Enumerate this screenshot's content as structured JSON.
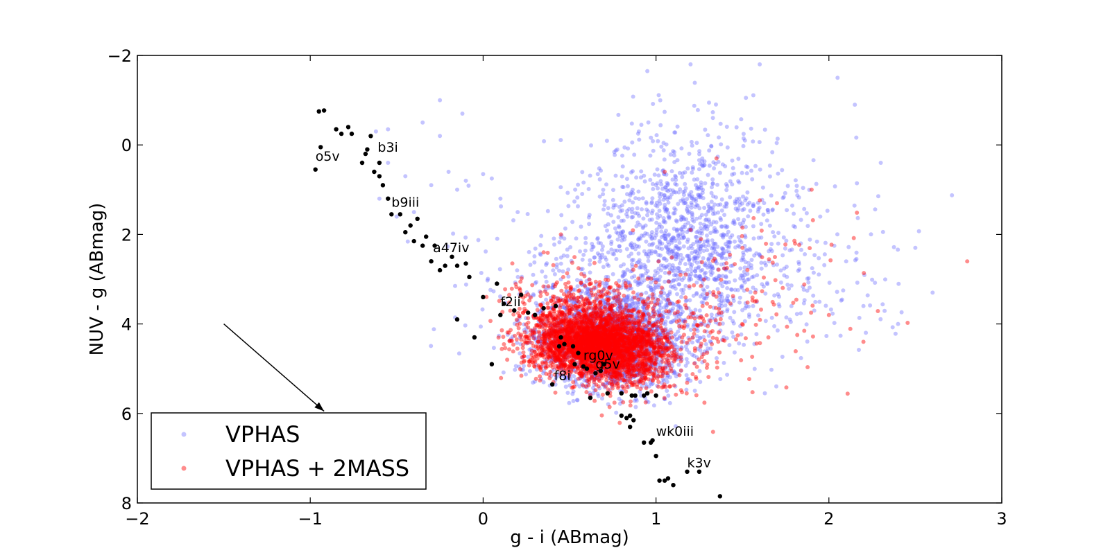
{
  "chart_data": {
    "type": "scatter",
    "xlabel": "g - i (ABmag)",
    "ylabel": "NUV - g (ABmag)",
    "xlim": [
      -2,
      3
    ],
    "ylim": [
      8,
      -2
    ],
    "y_inverted": true,
    "grid": false,
    "legend": {
      "placement": "bottom-left"
    },
    "x_ticks": [
      -2,
      -1,
      0,
      1,
      2,
      3
    ],
    "x_tick_labels": [
      "−2",
      "−1",
      "0",
      "1",
      "2",
      "3"
    ],
    "y_ticks": [
      -2,
      0,
      2,
      4,
      6,
      8
    ],
    "y_tick_labels": [
      "−2",
      "0",
      "2",
      "4",
      "6",
      "8"
    ],
    "series": [
      {
        "name": "VPHAS",
        "color": "#6b6bff",
        "opacity": 0.4,
        "distribution": [
          {
            "cx": 0.75,
            "cy": 4.4,
            "sx": 0.22,
            "sy": 0.55,
            "n": 1800
          },
          {
            "cx": 1.2,
            "cy": 1.8,
            "sx": 0.28,
            "sy": 1.1,
            "n": 900
          },
          {
            "cx": 0.9,
            "cy": 3.0,
            "sx": 0.4,
            "sy": 0.9,
            "n": 600
          },
          {
            "cx": 1.8,
            "cy": 3.0,
            "sx": 0.35,
            "sy": 0.9,
            "n": 140
          }
        ],
        "outliers": [
          [
            -0.55,
            0.4
          ],
          [
            -0.45,
            0.7
          ],
          [
            -0.3,
            0.9
          ],
          [
            -0.2,
            0.6
          ],
          [
            -0.15,
            1.0
          ],
          [
            -0.1,
            0.8
          ],
          [
            0.0,
            0.65
          ],
          [
            0.05,
            0.75
          ],
          [
            -0.62,
            -0.3
          ],
          [
            -0.55,
            -0.35
          ],
          [
            -0.35,
            -0.5
          ],
          [
            -0.25,
            -1.0
          ],
          [
            -0.12,
            -0.7
          ],
          [
            -0.25,
            -0.2
          ],
          [
            -0.5,
            1.6
          ],
          [
            -0.4,
            1.5
          ],
          [
            -0.6,
            1.2
          ],
          [
            0.1,
            1.2
          ],
          [
            0.2,
            1.5
          ],
          [
            2.3,
            0.4
          ],
          [
            2.5,
            2.3
          ],
          [
            2.6,
            3.3
          ],
          [
            2.4,
            4.0
          ],
          [
            2.2,
            3.6
          ],
          [
            2.1,
            2.6
          ],
          [
            1.95,
            1.6
          ],
          [
            2.15,
            -0.9
          ],
          [
            2.05,
            -1.5
          ],
          [
            1.6,
            -1.8
          ],
          [
            1.2,
            -1.8
          ],
          [
            0.95,
            -1.65
          ]
        ]
      },
      {
        "name": "VPHAS + 2MASS",
        "color": "#ff0000",
        "opacity": 0.45,
        "distribution": [
          {
            "cx": 0.62,
            "cy": 4.45,
            "sx": 0.16,
            "sy": 0.35,
            "n": 2200
          },
          {
            "cx": 0.85,
            "cy": 4.7,
            "sx": 0.14,
            "sy": 0.4,
            "n": 700
          },
          {
            "cx": 0.55,
            "cy": 3.8,
            "sx": 0.2,
            "sy": 0.45,
            "n": 500
          },
          {
            "cx": 1.1,
            "cy": 4.2,
            "sx": 0.25,
            "sy": 0.7,
            "n": 220
          },
          {
            "cx": 1.7,
            "cy": 3.2,
            "sx": 0.3,
            "sy": 0.9,
            "n": 60
          }
        ],
        "outliers": [
          [
            2.8,
            2.6
          ],
          [
            1.9,
            1.0
          ],
          [
            1.7,
            1.3
          ],
          [
            1.35,
            0.3
          ],
          [
            1.05,
            0.6
          ],
          [
            1.2,
            1.9
          ],
          [
            1.5,
            2.3
          ],
          [
            2.2,
            4.4
          ],
          [
            2.0,
            3.8
          ],
          [
            1.65,
            4.3
          ],
          [
            0.35,
            2.4
          ],
          [
            0.45,
            2.0
          ]
        ]
      }
    ],
    "stars": [
      [
        -0.97,
        0.55
      ],
      [
        -0.95,
        -0.75
      ],
      [
        -0.92,
        -0.77
      ],
      [
        -0.94,
        0.05
      ],
      [
        -0.85,
        -0.35
      ],
      [
        -0.82,
        -0.25
      ],
      [
        -0.78,
        -0.4
      ],
      [
        -0.76,
        -0.25
      ],
      [
        -0.7,
        0.4
      ],
      [
        -0.68,
        0.2
      ],
      [
        -0.67,
        0.1
      ],
      [
        -0.65,
        -0.2
      ],
      [
        -0.63,
        0.6
      ],
      [
        -0.6,
        0.7
      ],
      [
        -0.58,
        0.9
      ],
      [
        -0.6,
        0.4
      ],
      [
        -0.55,
        1.2
      ],
      [
        -0.53,
        1.55
      ],
      [
        -0.48,
        1.55
      ],
      [
        -0.45,
        1.95
      ],
      [
        -0.42,
        1.8
      ],
      [
        -0.4,
        2.15
      ],
      [
        -0.38,
        1.65
      ],
      [
        -0.35,
        2.25
      ],
      [
        -0.33,
        2.05
      ],
      [
        -0.3,
        2.6
      ],
      [
        -0.28,
        2.25
      ],
      [
        -0.25,
        2.8
      ],
      [
        -0.22,
        2.7
      ],
      [
        -0.18,
        2.5
      ],
      [
        -0.15,
        2.7
      ],
      [
        -0.1,
        2.65
      ],
      [
        -0.08,
        2.95
      ],
      [
        -0.15,
        3.9
      ],
      [
        -0.05,
        4.3
      ],
      [
        0.0,
        3.4
      ],
      [
        0.05,
        4.9
      ],
      [
        0.08,
        3.1
      ],
      [
        0.1,
        3.8
      ],
      [
        0.12,
        3.55
      ],
      [
        0.18,
        3.7
      ],
      [
        0.22,
        3.35
      ],
      [
        0.26,
        3.75
      ],
      [
        0.3,
        3.8
      ],
      [
        0.35,
        3.65
      ],
      [
        0.4,
        5.35
      ],
      [
        0.42,
        3.6
      ],
      [
        0.45,
        4.3
      ],
      [
        0.44,
        4.5
      ],
      [
        0.47,
        4.45
      ],
      [
        0.52,
        4.5
      ],
      [
        0.55,
        4.65
      ],
      [
        0.53,
        4.9
      ],
      [
        0.58,
        4.95
      ],
      [
        0.6,
        5.0
      ],
      [
        0.65,
        5.1
      ],
      [
        0.68,
        5.05
      ],
      [
        0.7,
        4.9
      ],
      [
        0.62,
        5.65
      ],
      [
        0.72,
        5.55
      ],
      [
        0.8,
        5.55
      ],
      [
        0.86,
        5.6
      ],
      [
        0.88,
        5.6
      ],
      [
        0.93,
        5.6
      ],
      [
        0.95,
        5.55
      ],
      [
        1.0,
        5.6
      ],
      [
        0.8,
        6.05
      ],
      [
        0.83,
        6.1
      ],
      [
        0.85,
        6.05
      ],
      [
        0.87,
        6.15
      ],
      [
        0.85,
        6.3
      ],
      [
        0.93,
        6.65
      ],
      [
        0.97,
        6.65
      ],
      [
        0.98,
        6.6
      ],
      [
        1.0,
        6.95
      ],
      [
        1.02,
        7.5
      ],
      [
        1.05,
        7.5
      ],
      [
        1.07,
        7.45
      ],
      [
        1.1,
        7.6
      ],
      [
        1.18,
        7.3
      ],
      [
        1.25,
        7.3
      ],
      [
        1.37,
        7.85
      ]
    ],
    "star_labels": [
      {
        "text": "o5v",
        "x": -0.97,
        "y": 0.35
      },
      {
        "text": "b3i",
        "x": -0.61,
        "y": 0.15
      },
      {
        "text": "b9iii",
        "x": -0.53,
        "y": 1.38
      },
      {
        "text": "a47iv",
        "x": -0.29,
        "y": 2.4
      },
      {
        "text": "f2ii",
        "x": 0.1,
        "y": 3.6
      },
      {
        "text": "f8i",
        "x": 0.41,
        "y": 5.25
      },
      {
        "text": "rg0v",
        "x": 0.58,
        "y": 4.8
      },
      {
        "text": "g5v",
        "x": 0.65,
        "y": 5.0
      },
      {
        "text": "wk0iii",
        "x": 1.0,
        "y": 6.5
      },
      {
        "text": "k3v",
        "x": 1.18,
        "y": 7.2
      }
    ],
    "arrow": {
      "from": [
        -1.5,
        4.0
      ],
      "to": [
        -0.92,
        5.95
      ]
    }
  }
}
